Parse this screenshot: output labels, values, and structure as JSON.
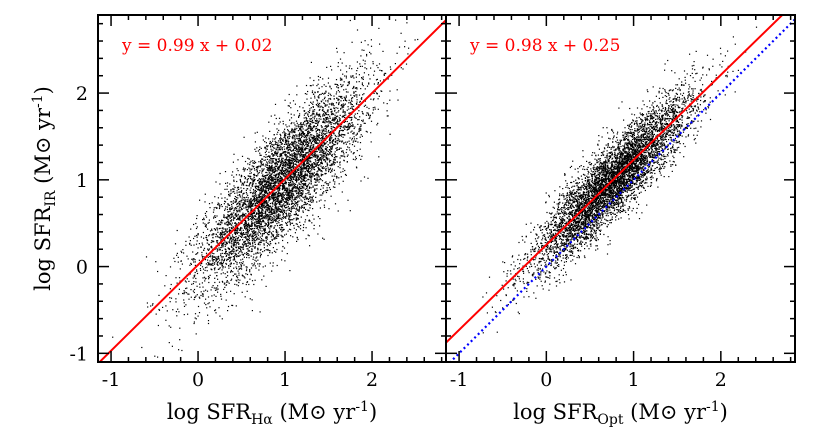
{
  "chart_data": [
    {
      "type": "scatter",
      "panel": "left",
      "xlabel": {
        "main": "log SFR",
        "sub": "Hα",
        "tail": " (M⊙ yr",
        "sup": "-1",
        "end": ")"
      },
      "ylabel": {
        "main": "log SFR",
        "sub": "IR",
        "tail": " (M⊙ yr",
        "sup": "-1",
        "end": ")"
      },
      "xlim": [
        -1.15,
        2.85
      ],
      "ylim": [
        -1.1,
        2.9
      ],
      "xticks": [
        -1,
        0,
        1,
        2
      ],
      "xtick_labels": [
        "-1",
        "0",
        "1",
        "2"
      ],
      "yticks": [
        -1,
        0,
        1,
        2
      ],
      "ytick_labels": [
        "-1",
        "0",
        "1",
        "2"
      ],
      "annotation": "y = 0.99 x + 0.02",
      "fits": [
        {
          "slope": 0.99,
          "intercept": 0.02,
          "color": "#ff0000",
          "style": "solid"
        }
      ],
      "scatter": {
        "description_count": 6000,
        "x_mean": 0.95,
        "x_sd": 0.48,
        "y_slope": 0.99,
        "y_intercept": 0.02,
        "y_scatter_sd": 0.32,
        "color": "#000000"
      }
    },
    {
      "type": "scatter",
      "panel": "right",
      "xlabel": {
        "main": "log SFR",
        "sub": "Opt",
        "tail": " (M⊙ yr",
        "sup": "-1",
        "end": ")"
      },
      "ylabel": null,
      "xlim": [
        -1.15,
        2.85
      ],
      "ylim": [
        -1.1,
        2.9
      ],
      "xticks": [
        -1,
        0,
        1,
        2
      ],
      "xtick_labels": [
        "-1",
        "0",
        "1",
        "2"
      ],
      "yticks": [
        -1,
        0,
        1,
        2
      ],
      "ytick_labels": [],
      "annotation": "y = 0.98 x + 0.25",
      "fits": [
        {
          "slope": 0.98,
          "intercept": 0.25,
          "color": "#ff0000",
          "style": "solid"
        },
        {
          "slope": 1.0,
          "intercept": 0.0,
          "color": "#0000ff",
          "style": "dotted"
        }
      ],
      "scatter": {
        "description_count": 6000,
        "x_mean": 0.75,
        "x_sd": 0.45,
        "y_slope": 0.98,
        "y_intercept": 0.25,
        "y_scatter_sd": 0.22,
        "color": "#000000"
      }
    }
  ]
}
